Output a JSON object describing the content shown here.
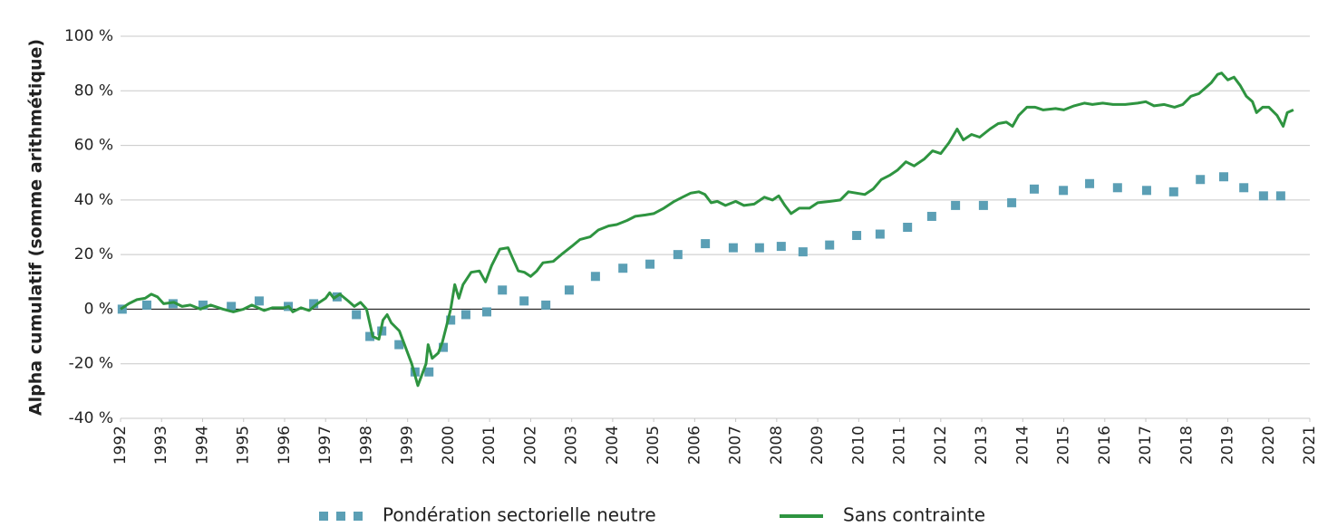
{
  "chart_data": {
    "type": "line",
    "y_label": "Alpha cumulatif (somme arithmétique)",
    "ylim": [
      -40,
      100
    ],
    "yticks": [
      {
        "value": -40,
        "label": "-40 %"
      },
      {
        "value": -20,
        "label": "-20 %"
      },
      {
        "value": 0,
        "label": "0 %"
      },
      {
        "value": 20,
        "label": "20 %"
      },
      {
        "value": 40,
        "label": "40 %"
      },
      {
        "value": 60,
        "label": "60 %"
      },
      {
        "value": 80,
        "label": "80 %"
      },
      {
        "value": 100,
        "label": "100 %"
      }
    ],
    "xlim": [
      1992,
      2021
    ],
    "xticks": [
      1992,
      1993,
      1994,
      1995,
      1996,
      1997,
      1998,
      1999,
      2000,
      2001,
      2002,
      2003,
      2004,
      2005,
      2006,
      2007,
      2008,
      2009,
      2010,
      2011,
      2012,
      2013,
      2014,
      2015,
      2016,
      2017,
      2018,
      2019,
      2020,
      2021
    ],
    "grid": true,
    "legend": "bottom",
    "series": [
      {
        "name": "Pondération sectorielle neutre",
        "color": "#5b9fb5",
        "mode": "markers",
        "x": [
          1992.04,
          1992.64,
          1993.28,
          1994.01,
          1994.7,
          1995.38,
          1996.09,
          1996.71,
          1997.28,
          1997.75,
          1998.08,
          1998.37,
          1998.79,
          1999.18,
          1999.52,
          1999.87,
          2000.05,
          2000.42,
          2000.93,
          2001.31,
          2001.84,
          2002.37,
          2002.94,
          2003.58,
          2004.25,
          2004.91,
          2005.59,
          2006.26,
          2006.94,
          2007.58,
          2008.11,
          2008.64,
          2009.29,
          2009.95,
          2010.52,
          2011.19,
          2011.78,
          2012.36,
          2013.04,
          2013.73,
          2014.28,
          2014.99,
          2015.63,
          2016.31,
          2017.02,
          2017.68,
          2018.33,
          2018.9,
          2019.39,
          2019.87,
          2020.29
        ],
        "values": [
          0,
          1.5,
          2,
          1.5,
          1,
          3,
          1,
          2,
          4.5,
          -2,
          -10,
          -8,
          -13,
          -23,
          -23,
          -14,
          -4,
          -2,
          -1,
          7,
          3,
          1.5,
          7,
          12,
          15,
          16.5,
          20,
          24,
          22.5,
          22.5,
          23,
          21,
          23.5,
          27,
          27.5,
          30,
          34,
          38,
          38,
          39,
          44,
          43.5,
          46,
          44.5,
          43.5,
          43,
          47.5,
          48.5,
          44.5,
          41.5,
          41.5
        ]
      },
      {
        "name": "Sans contrainte",
        "color": "#2e9440",
        "mode": "lines",
        "x": [
          1992.0,
          1992.2,
          1992.4,
          1992.6,
          1992.75,
          1992.9,
          1993.05,
          1993.3,
          1993.5,
          1993.7,
          1993.95,
          1994.2,
          1994.5,
          1994.75,
          1995.0,
          1995.2,
          1995.5,
          1995.7,
          1996.0,
          1996.1,
          1996.2,
          1996.4,
          1996.6,
          1996.8,
          1997.0,
          1997.1,
          1997.2,
          1997.35,
          1997.55,
          1997.7,
          1997.85,
          1998.0,
          1998.15,
          1998.3,
          1998.4,
          1998.5,
          1998.6,
          1998.8,
          1998.95,
          1999.1,
          1999.25,
          1999.35,
          1999.45,
          1999.5,
          1999.6,
          1999.75,
          1999.85,
          1999.95,
          2000.05,
          2000.15,
          2000.25,
          2000.35,
          2000.55,
          2000.75,
          2000.9,
          2001.05,
          2001.25,
          2001.45,
          2001.55,
          2001.7,
          2001.85,
          2002.0,
          2002.15,
          2002.3,
          2002.55,
          2002.75,
          2003.0,
          2003.2,
          2003.45,
          2003.65,
          2003.9,
          2004.1,
          2004.35,
          2004.55,
          2004.8,
          2005.0,
          2005.25,
          2005.5,
          2005.7,
          2005.9,
          2006.1,
          2006.25,
          2006.4,
          2006.55,
          2006.75,
          2007.0,
          2007.2,
          2007.45,
          2007.7,
          2007.9,
          2008.05,
          2008.2,
          2008.35,
          2008.55,
          2008.8,
          2009.0,
          2009.3,
          2009.55,
          2009.75,
          2009.95,
          2010.15,
          2010.35,
          2010.55,
          2010.75,
          2010.95,
          2011.15,
          2011.35,
          2011.6,
          2011.8,
          2012.0,
          2012.2,
          2012.4,
          2012.55,
          2012.75,
          2012.95,
          2013.2,
          2013.4,
          2013.6,
          2013.75,
          2013.9,
          2014.1,
          2014.3,
          2014.5,
          2014.8,
          2015.0,
          2015.25,
          2015.5,
          2015.7,
          2015.95,
          2016.2,
          2016.5,
          2016.8,
          2017.0,
          2017.2,
          2017.45,
          2017.7,
          2017.9,
          2018.1,
          2018.3,
          2018.45,
          2018.6,
          2018.75,
          2018.85,
          2019.0,
          2019.15,
          2019.3,
          2019.45,
          2019.6,
          2019.7,
          2019.85,
          2020.0,
          2020.2,
          2020.35,
          2020.45,
          2020.6
        ],
        "values": [
          0,
          2,
          3.5,
          4,
          5.5,
          4.5,
          2,
          2.5,
          1,
          1.5,
          0,
          1.5,
          0,
          -1,
          0,
          1.5,
          -0.5,
          0.5,
          0.5,
          1,
          -1,
          0.5,
          -0.5,
          2,
          4,
          6,
          4,
          5.5,
          3,
          1,
          2.5,
          0,
          -10,
          -11,
          -4,
          -2,
          -5,
          -8,
          -14,
          -20,
          -28,
          -24,
          -20,
          -13,
          -18,
          -16,
          -12,
          -6,
          0,
          9,
          4,
          9,
          13.5,
          14,
          10,
          16,
          22,
          22.5,
          19,
          14,
          13.5,
          12,
          14,
          17,
          17.5,
          20,
          23,
          25.5,
          26.5,
          29,
          30.5,
          31,
          32.5,
          34,
          34.5,
          35,
          37,
          39.5,
          41,
          42.5,
          43,
          42,
          39,
          39.5,
          38,
          39.5,
          38,
          38.5,
          41,
          40,
          41.5,
          38,
          35,
          37,
          37,
          39,
          39.5,
          40,
          43,
          42.5,
          42,
          44,
          47.5,
          49,
          51,
          54,
          52.5,
          55,
          58,
          57,
          61,
          66,
          62,
          64,
          63,
          66,
          68,
          68.5,
          67,
          71,
          74,
          74,
          73,
          73.5,
          73,
          74.5,
          75.5,
          75,
          75.5,
          75,
          75,
          75.5,
          76,
          74.5,
          75,
          74,
          75,
          78,
          79,
          81,
          83,
          86,
          86.5,
          84,
          85,
          82,
          78,
          76,
          72,
          74,
          74,
          71,
          67,
          72,
          73
        ]
      }
    ]
  }
}
